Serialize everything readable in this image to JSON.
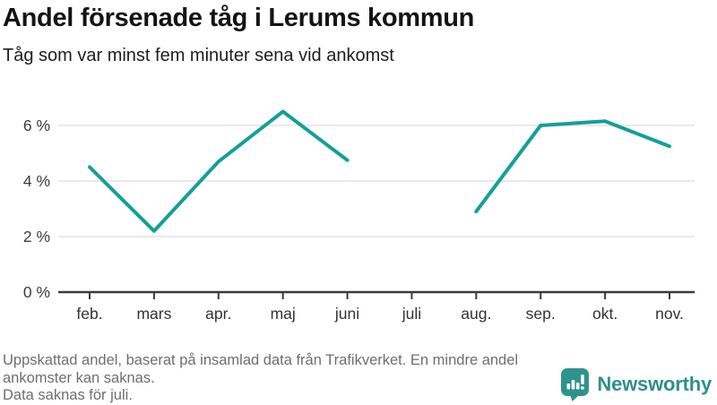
{
  "header": {
    "title": "Andel försenade tåg i Lerums kommun",
    "subtitle": "Tåg som var minst fem minuter sena vid ankomst"
  },
  "footer": {
    "note_lines": [
      "Uppskattad andel, baserat på insamlad data från Trafikverket. En mindre andel",
      "ankomster kan saknas.",
      "Data saknas för juli."
    ]
  },
  "branding": {
    "logo_text": "Newsworthy",
    "logo_icon": "bar-chart-speech-bubble-icon",
    "icon_color": "#2e938c",
    "text_color": "#2f8f8a"
  },
  "chart_data": {
    "type": "line",
    "title": "Andel försenade tåg i Lerums kommun",
    "subtitle": "Tåg som var minst fem minuter sena vid ankomst",
    "x_tick_labels": [
      "feb.",
      "mars",
      "apr.",
      "maj",
      "juni",
      "juli",
      "aug.",
      "sep.",
      "okt.",
      "nov."
    ],
    "y_tick_labels": [
      "0 %",
      "2 %",
      "4 %",
      "6 %"
    ],
    "y_gridlines": [
      2,
      4,
      6
    ],
    "ylim": [
      0,
      7
    ],
    "unit": "%",
    "grid": true,
    "legend_position": "none",
    "line_color": "#14a096",
    "series": [
      {
        "name": "Andel försenade tåg",
        "values": [
          4.5,
          2.2,
          4.7,
          6.5,
          4.75,
          null,
          2.9,
          6.0,
          6.15,
          5.25
        ]
      }
    ],
    "notes": "Gap in line at juli (missing data)"
  }
}
